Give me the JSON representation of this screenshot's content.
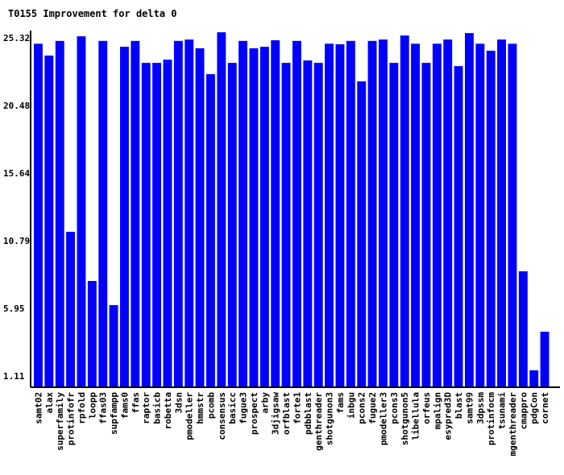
{
  "chart_data": {
    "type": "bar",
    "title": "T0155 Improvement for delta 0",
    "xlabel": "",
    "ylabel": "",
    "ylim": [
      0.3,
      25.84
    ],
    "yticks": [
      "1.11",
      "5.95",
      "10.79",
      "15.64",
      "20.48",
      "25.32"
    ],
    "grid": false,
    "bar_color": "#0000ff",
    "categories": [
      "samt02",
      "alax",
      "superfamily",
      "protinfofr",
      "rpfold",
      "loopp",
      "ffas03",
      "supfampp",
      "fams0",
      "ffas",
      "raptor",
      "basicb",
      "robetta",
      "3dsn",
      "pmodeller",
      "hmmstr",
      "pcomb",
      "consensus",
      "basicc",
      "fugue3",
      "prospect",
      "arby",
      "3djigsaw",
      "orfblast",
      "forte1",
      "pdbblast",
      "genthreader",
      "shotgunon3",
      "fams",
      "inbgu",
      "pcons2",
      "fugue2",
      "pmodeller3",
      "pcons3",
      "shotgunon5",
      "libellula",
      "orfeus",
      "mpalign",
      "esypred3D",
      "blast",
      "samt99",
      "3dpssm",
      "protinfocm",
      "tsunami",
      "mgenthreader",
      "cmappro",
      "pdgCon",
      "cornet"
    ],
    "values": [
      24.9,
      24.05,
      25.1,
      11.43,
      25.43,
      7.91,
      25.1,
      6.18,
      24.68,
      25.1,
      23.53,
      23.53,
      23.76,
      25.1,
      25.2,
      24.57,
      22.72,
      25.72,
      23.53,
      25.1,
      24.57,
      24.68,
      25.15,
      23.53,
      25.1,
      23.7,
      23.53,
      24.9,
      24.86,
      25.1,
      22.2,
      25.1,
      25.2,
      23.53,
      25.49,
      24.9,
      23.53,
      24.9,
      25.2,
      23.3,
      25.66,
      24.9,
      24.4,
      25.2,
      24.9,
      8.6,
      1.51,
      4.28
    ]
  }
}
